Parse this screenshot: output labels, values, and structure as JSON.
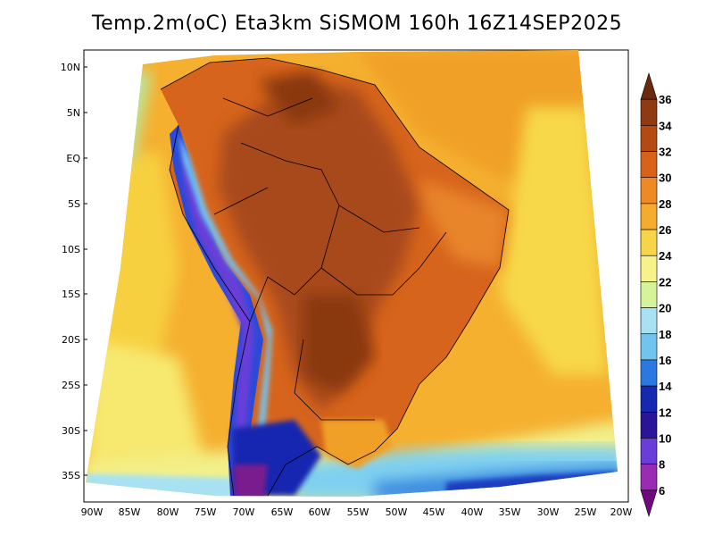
{
  "title": "Temp.2m(oC) Eta3km SiSMOM 160h 16Z14SEP2025",
  "latitude_labels": [
    "10N",
    "5N",
    "EQ",
    "5S",
    "10S",
    "15S",
    "20S",
    "25S",
    "30S",
    "35S"
  ],
  "longitude_labels": [
    "90W",
    "85W",
    "80W",
    "75W",
    "70W",
    "65W",
    "60W",
    "55W",
    "50W",
    "45W",
    "40W",
    "35W",
    "30W",
    "25W",
    "20W"
  ],
  "colorbar": {
    "labels": [
      "36",
      "34",
      "32",
      "30",
      "28",
      "26",
      "24",
      "22",
      "20",
      "18",
      "16",
      "14",
      "12",
      "10",
      "8",
      "6"
    ],
    "colors": [
      "#6b2a0e",
      "#8e3a12",
      "#b34a14",
      "#d8621a",
      "#ee8a26",
      "#f5ac2e",
      "#f7d44a",
      "#f7f28a",
      "#d6f29a",
      "#a8e2f2",
      "#72c4f0",
      "#2a78e0",
      "#1428b0",
      "#2a1498",
      "#6a3cd8",
      "#9a2cb4",
      "#6e0a7e"
    ]
  }
}
